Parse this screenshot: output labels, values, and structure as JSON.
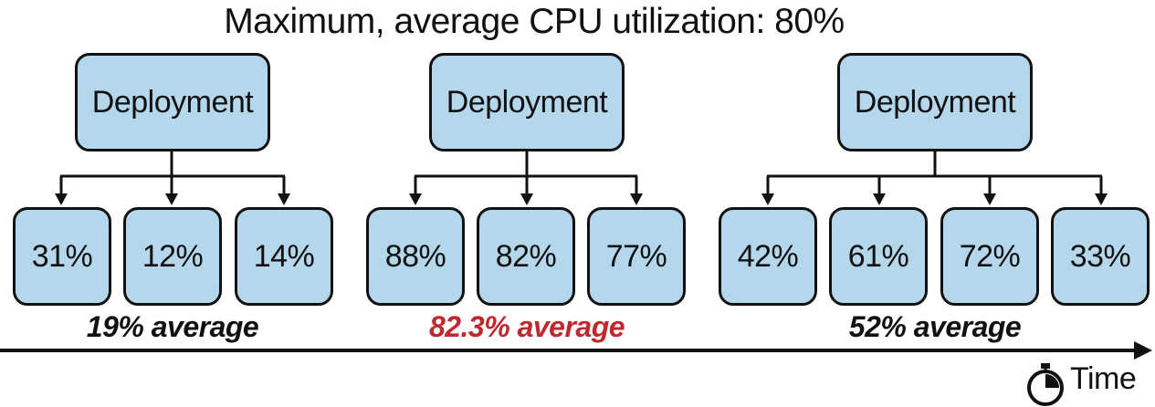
{
  "title": "Maximum, average CPU utilization: 80%",
  "groups": [
    {
      "deployment_label": "Deployment",
      "pods": [
        "31%",
        "12%",
        "14%"
      ],
      "average_label": "19% average",
      "average_color": "#111111"
    },
    {
      "deployment_label": "Deployment",
      "pods": [
        "88%",
        "82%",
        "77%"
      ],
      "average_label": "82.3% average",
      "average_color": "#c0282d"
    },
    {
      "deployment_label": "Deployment",
      "pods": [
        "42%",
        "61%",
        "72%",
        "33%"
      ],
      "average_label": "52% average",
      "average_color": "#111111"
    }
  ],
  "time_axis": {
    "label": "Time",
    "icon": "stopwatch-icon"
  },
  "colors": {
    "box_fill": "#b5d7ec",
    "stroke": "#111111",
    "highlight": "#c0282d"
  }
}
